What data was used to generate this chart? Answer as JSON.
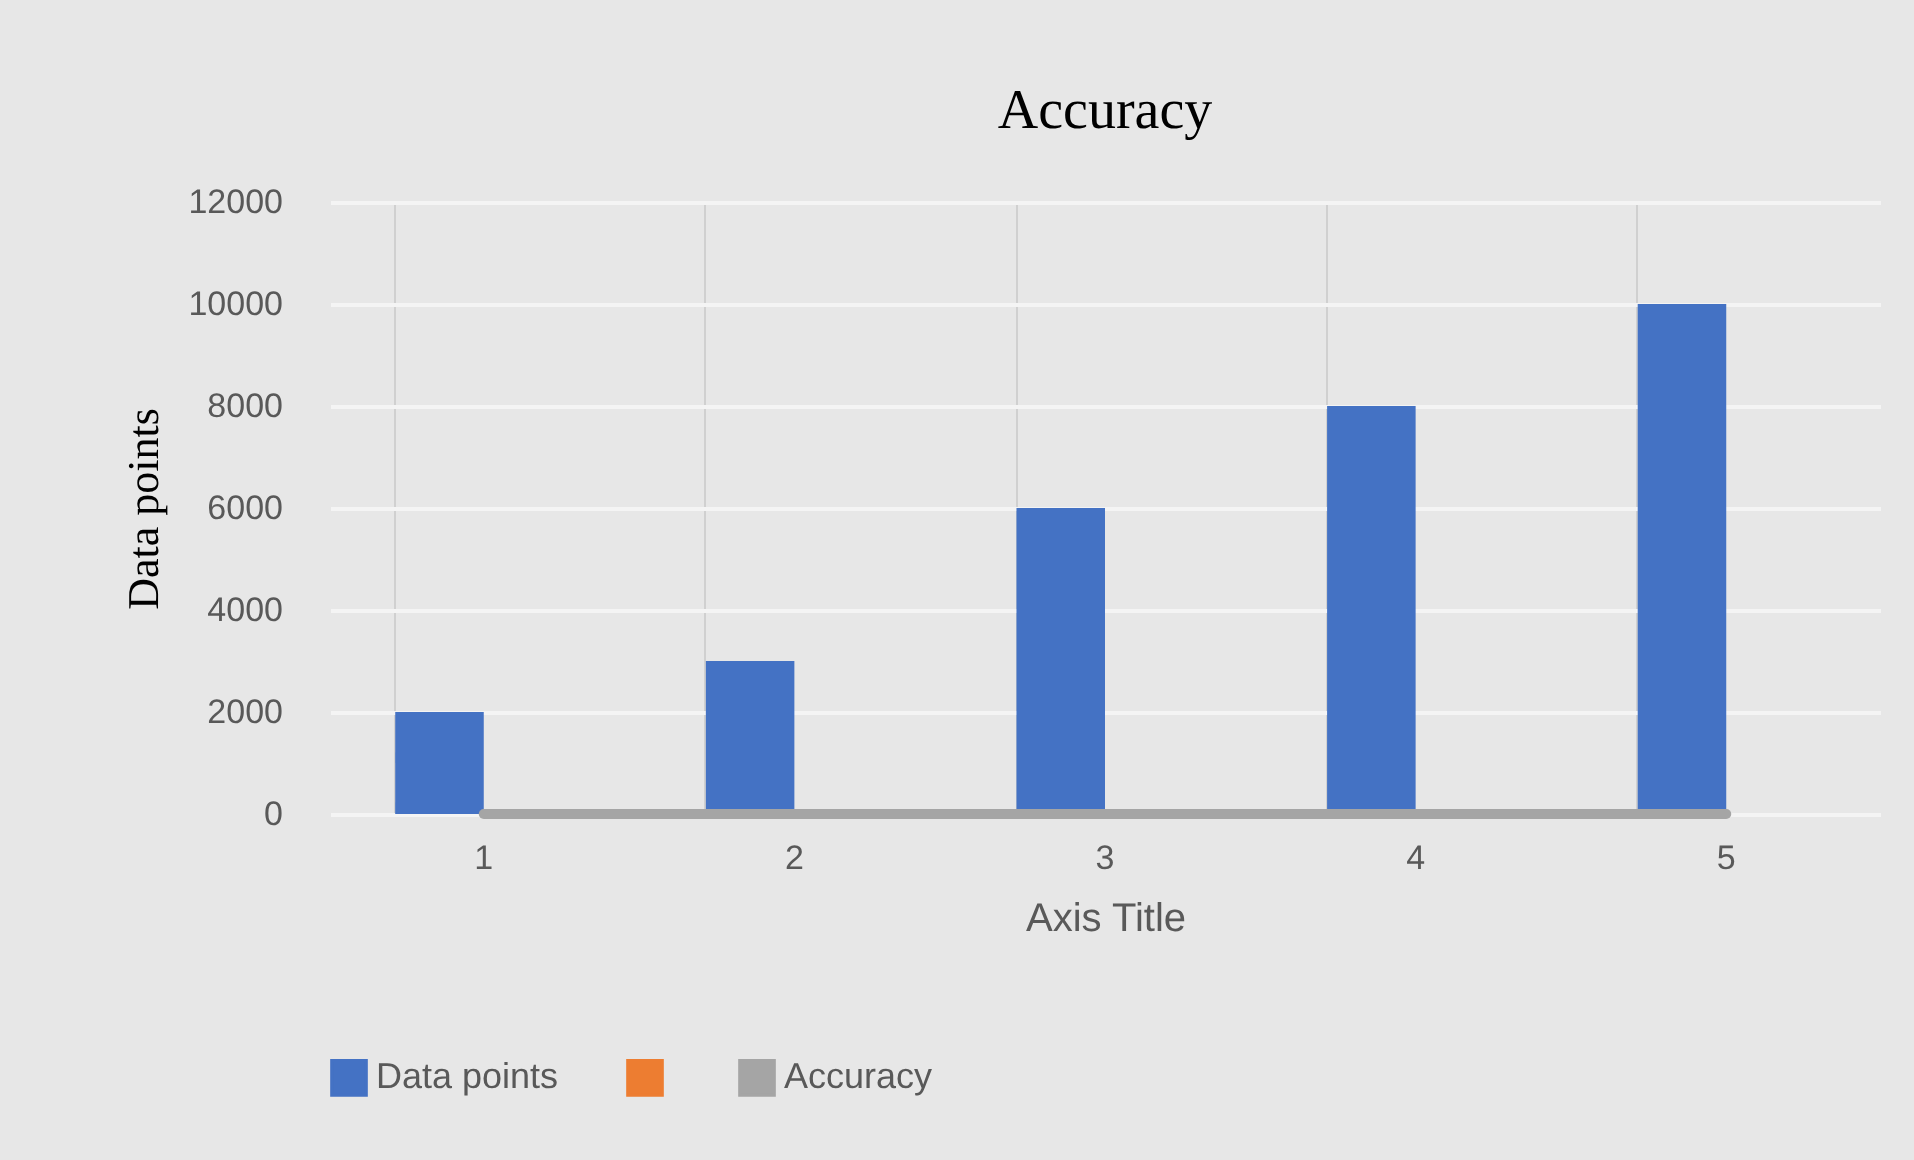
{
  "chart_data": {
    "type": "bar",
    "title": "Accuracy",
    "xlabel": "Axis Title",
    "ylabel": "Data points",
    "categories": [
      "1",
      "2",
      "3",
      "4",
      "5"
    ],
    "series": [
      {
        "name": "Data points",
        "color": "#4472c4",
        "values": [
          2000,
          3000,
          6000,
          8000,
          10000
        ]
      },
      {
        "color": "#ed7d31",
        "values": [
          null,
          null,
          null,
          null,
          null
        ]
      },
      {
        "name": "Accuracy",
        "type": "line",
        "color": "#a5a5a5",
        "values": [
          0,
          0,
          0,
          0,
          0
        ]
      }
    ],
    "ylim": [
      0,
      12000
    ],
    "yticks": [
      0,
      2000,
      4000,
      6000,
      8000,
      10000,
      12000
    ],
    "grid": true,
    "legend": "bottom"
  }
}
